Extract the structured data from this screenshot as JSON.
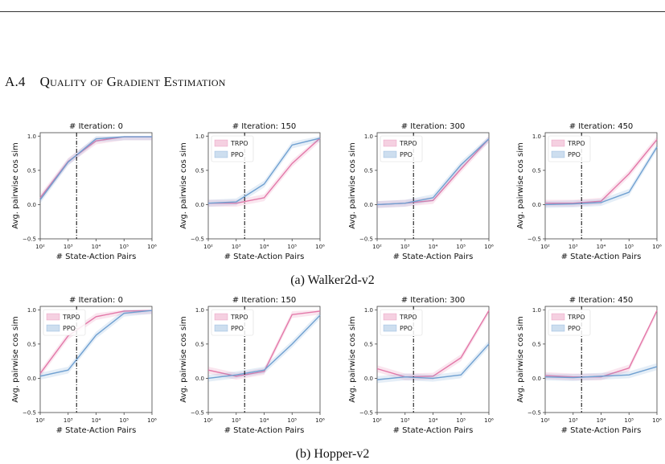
{
  "section": {
    "number": "A.4",
    "title": "Quality of Gradient Estimation"
  },
  "captions": {
    "a": "(a) Walker2d-v2",
    "b": "(b) Hopper-v2"
  },
  "colors": {
    "trpo": "#e377a8",
    "ppo": "#6fa0d1",
    "marker_line": "#000000"
  },
  "chart_data": [
    {
      "type": "line",
      "group": "Walker2d-v2",
      "title": "# Iteration: 0",
      "xlabel": "# State-Action Pairs",
      "ylabel": "Avg. pairwise cos sim",
      "x_scale": "log",
      "x": [
        100,
        1000,
        10000,
        100000,
        1000000
      ],
      "x_ticks": [
        "10²",
        "10³",
        "10⁴",
        "10⁵",
        "10⁶"
      ],
      "y_ticks": [
        "−0.5",
        "0.0",
        "0.5",
        "1.0"
      ],
      "ylim": [
        -0.5,
        1.05
      ],
      "vline_x": 2000,
      "legend": "none",
      "series": [
        {
          "name": "TRPO",
          "values": [
            0.1,
            0.63,
            0.93,
            0.99,
            0.99
          ]
        },
        {
          "name": "PPO",
          "values": [
            0.07,
            0.62,
            0.96,
            0.99,
            0.99
          ]
        }
      ]
    },
    {
      "type": "line",
      "group": "Walker2d-v2",
      "title": "# Iteration: 150",
      "xlabel": "# State-Action Pairs",
      "ylabel": "Avg. pairwise cos sim",
      "x_scale": "log",
      "x": [
        100,
        1000,
        10000,
        100000,
        1000000
      ],
      "x_ticks": [
        "10²",
        "10³",
        "10⁴",
        "10⁵",
        "10⁶"
      ],
      "y_ticks": [
        "−0.5",
        "0.0",
        "0.5",
        "1.0"
      ],
      "ylim": [
        -0.5,
        1.05
      ],
      "vline_x": 2000,
      "legend": "top-left",
      "series": [
        {
          "name": "TRPO",
          "values": [
            0.02,
            0.02,
            0.1,
            0.6,
            0.97
          ]
        },
        {
          "name": "PPO",
          "values": [
            0.02,
            0.04,
            0.3,
            0.87,
            0.97
          ]
        }
      ]
    },
    {
      "type": "line",
      "group": "Walker2d-v2",
      "title": "# Iteration: 300",
      "xlabel": "# State-Action Pairs",
      "ylabel": "Avg. pairwise cos sim",
      "x_scale": "log",
      "x": [
        100,
        1000,
        10000,
        100000,
        1000000
      ],
      "x_ticks": [
        "10²",
        "10³",
        "10⁴",
        "10⁵",
        "10⁶"
      ],
      "y_ticks": [
        "−0.5",
        "0.0",
        "0.5",
        "1.0"
      ],
      "ylim": [
        -0.5,
        1.05
      ],
      "vline_x": 2000,
      "legend": "top-left",
      "series": [
        {
          "name": "TRPO",
          "values": [
            0.0,
            0.02,
            0.06,
            0.52,
            0.96
          ]
        },
        {
          "name": "PPO",
          "values": [
            0.0,
            0.02,
            0.1,
            0.58,
            0.96
          ]
        }
      ]
    },
    {
      "type": "line",
      "group": "Walker2d-v2",
      "title": "# Iteration: 450",
      "xlabel": "# State-Action Pairs",
      "ylabel": "Avg. pairwise cos sim",
      "x_scale": "log",
      "x": [
        100,
        1000,
        10000,
        100000,
        1000000
      ],
      "x_ticks": [
        "10²",
        "10³",
        "10⁴",
        "10⁵",
        "10⁶"
      ],
      "y_ticks": [
        "−0.5",
        "0.0",
        "0.5",
        "1.0"
      ],
      "ylim": [
        -0.5,
        1.05
      ],
      "vline_x": 2000,
      "legend": "top-left",
      "series": [
        {
          "name": "TRPO",
          "values": [
            0.02,
            0.02,
            0.05,
            0.45,
            0.95
          ]
        },
        {
          "name": "PPO",
          "values": [
            0.0,
            0.01,
            0.03,
            0.18,
            0.84
          ]
        }
      ]
    },
    {
      "type": "line",
      "group": "Hopper-v2",
      "title": "# Iteration: 0",
      "xlabel": "# State-Action Pairs",
      "ylabel": "Avg. pairwise cos sim",
      "x_scale": "log",
      "x": [
        100,
        1000,
        10000,
        100000,
        1000000
      ],
      "x_ticks": [
        "10²",
        "10³",
        "10⁴",
        "10⁵",
        "10⁶"
      ],
      "y_ticks": [
        "−0.5",
        "0.0",
        "0.5",
        "1.0"
      ],
      "ylim": [
        -0.5,
        1.05
      ],
      "vline_x": 2000,
      "legend": "top-left",
      "series": [
        {
          "name": "TRPO",
          "values": [
            0.07,
            0.62,
            0.9,
            0.98,
            0.99
          ]
        },
        {
          "name": "PPO",
          "values": [
            0.03,
            0.12,
            0.63,
            0.95,
            0.99
          ]
        }
      ]
    },
    {
      "type": "line",
      "group": "Hopper-v2",
      "title": "# Iteration: 150",
      "xlabel": "# State-Action Pairs",
      "ylabel": "Avg. pairwise cos sim",
      "x_scale": "log",
      "x": [
        100,
        1000,
        10000,
        100000,
        1000000
      ],
      "x_ticks": [
        "10²",
        "10³",
        "10⁴",
        "10⁵",
        "10⁶"
      ],
      "y_ticks": [
        "−0.5",
        "0.0",
        "0.5",
        "1.0"
      ],
      "ylim": [
        -0.5,
        1.05
      ],
      "vline_x": 2000,
      "legend": "top-left",
      "series": [
        {
          "name": "TRPO",
          "values": [
            0.12,
            0.03,
            0.1,
            0.93,
            0.98
          ]
        },
        {
          "name": "PPO",
          "values": [
            0.0,
            0.05,
            0.12,
            0.5,
            0.92
          ]
        }
      ]
    },
    {
      "type": "line",
      "group": "Hopper-v2",
      "title": "# Iteration: 300",
      "xlabel": "# State-Action Pairs",
      "ylabel": "Avg. pairwise cos sim",
      "x_scale": "log",
      "x": [
        100,
        1000,
        10000,
        100000,
        1000000
      ],
      "x_ticks": [
        "10²",
        "10³",
        "10⁴",
        "10⁵",
        "10⁶"
      ],
      "y_ticks": [
        "−0.5",
        "0.0",
        "0.5",
        "1.0"
      ],
      "ylim": [
        -0.5,
        1.05
      ],
      "vline_x": 2000,
      "legend": "top-left",
      "series": [
        {
          "name": "TRPO",
          "values": [
            0.14,
            0.02,
            0.03,
            0.3,
            0.99
          ]
        },
        {
          "name": "PPO",
          "values": [
            -0.02,
            0.02,
            0.0,
            0.05,
            0.5
          ]
        }
      ]
    },
    {
      "type": "line",
      "group": "Hopper-v2",
      "title": "# Iteration: 450",
      "xlabel": "# State-Action Pairs",
      "ylabel": "Avg. pairwise cos sim",
      "x_scale": "log",
      "x": [
        100,
        1000,
        10000,
        100000,
        1000000
      ],
      "x_ticks": [
        "10²",
        "10³",
        "10⁴",
        "10⁵",
        "10⁶"
      ],
      "y_ticks": [
        "−0.5",
        "0.0",
        "0.5",
        "1.0"
      ],
      "ylim": [
        -0.5,
        1.05
      ],
      "vline_x": 2000,
      "legend": "top-left",
      "series": [
        {
          "name": "TRPO",
          "values": [
            0.04,
            0.02,
            0.02,
            0.15,
            0.99
          ]
        },
        {
          "name": "PPO",
          "values": [
            0.02,
            0.01,
            0.03,
            0.05,
            0.17
          ]
        }
      ]
    }
  ]
}
